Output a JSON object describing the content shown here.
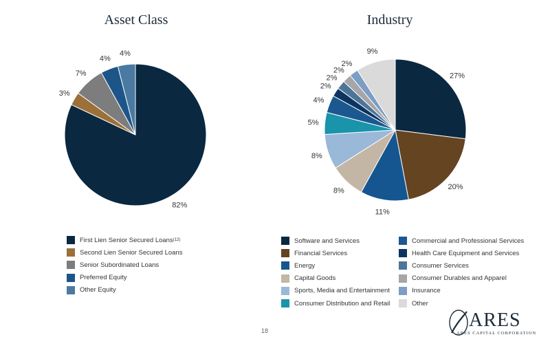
{
  "page_number": "18",
  "logo": {
    "word": "ARES",
    "subtitle": "ARES CAPITAL CORPORATION"
  },
  "chart_data": [
    {
      "type": "pie",
      "title": "Asset Class",
      "slices": [
        {
          "label": "First Lien Senior Secured Loans",
          "label_sup": "(12)",
          "value": 82,
          "value_label": "82%",
          "color": "#0b2841"
        },
        {
          "label": "Second Lien Senior Secured Loans",
          "value": 3,
          "value_label": "3%",
          "color": "#9c7038"
        },
        {
          "label": "Senior Subordinated Loans",
          "value": 7,
          "value_label": "7%",
          "color": "#7d7d7d"
        },
        {
          "label": "Preferred Equity",
          "value": 4,
          "value_label": "4%",
          "color": "#1d5589"
        },
        {
          "label": "Other Equity",
          "value": 4,
          "value_label": "4%",
          "color": "#4a7aa2"
        }
      ]
    },
    {
      "type": "pie",
      "title": "Industry",
      "slices": [
        {
          "label": "Software and Services",
          "value": 27,
          "value_label": "27%",
          "color": "#0b2841"
        },
        {
          "label": "Financial Services",
          "value": 20,
          "value_label": "20%",
          "color": "#654422"
        },
        {
          "label": "Energy",
          "value": 11,
          "value_label": "11%",
          "color": "#165690"
        },
        {
          "label": "Capital Goods",
          "value": 8,
          "value_label": "8%",
          "color": "#c4b6a5"
        },
        {
          "label": "Sports, Media and Entertainment",
          "value": 8,
          "value_label": "8%",
          "color": "#9ab8d8"
        },
        {
          "label": "Consumer Distribution and Retail",
          "value": 5,
          "value_label": "5%",
          "color": "#1994aa"
        },
        {
          "label": "Commercial and Professional Services",
          "value": 4,
          "value_label": "4%",
          "color": "#1b5890"
        },
        {
          "label": "Health Care Equipment and Services",
          "value": 2,
          "value_label": "2%",
          "color": "#0d3461"
        },
        {
          "label": "Consumer Services",
          "value": 2,
          "value_label": "2%",
          "color": "#4d7598"
        },
        {
          "label": "Consumer Durables and Apparel",
          "value": 2,
          "value_label": "2%",
          "color": "#a6a6a6"
        },
        {
          "label": "Insurance",
          "value": 2,
          "value_label": "2%",
          "color": "#7c9ec5"
        },
        {
          "label": "Other",
          "value": 9,
          "value_label": "9%",
          "color": "#dadada"
        }
      ]
    }
  ]
}
